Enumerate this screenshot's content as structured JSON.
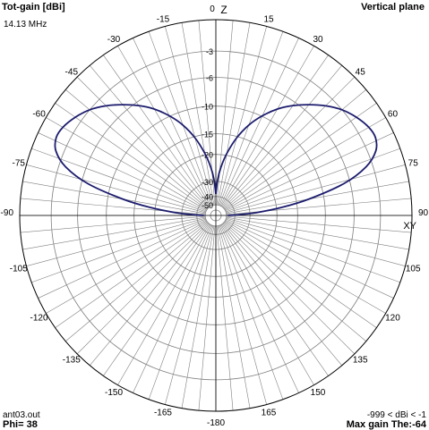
{
  "header": {
    "quantity": "Tot-gain [dBi]",
    "frequency": "14.13 MHz",
    "plane": "Vertical plane"
  },
  "axis_labels": {
    "z": "Z",
    "xy": "XY"
  },
  "footer": {
    "file": "ant03.out",
    "phi": "Phi= 38",
    "range": "-999 < dBi < -1",
    "max_gain": "Max gain The:-64"
  },
  "colors": {
    "pattern": "#1c1c6e",
    "grid": "#808080",
    "frame": "#000000",
    "background": "#ffffff"
  },
  "chart_data": {
    "type": "polar",
    "title": "Tot-gain [dBi]",
    "plane": "Vertical plane",
    "frequency": "14.13 MHz",
    "angle_unit": "deg",
    "angle_ticks": [
      0,
      15,
      30,
      45,
      60,
      75,
      90,
      105,
      120,
      135,
      150,
      165,
      -180,
      -165,
      -150,
      -135,
      -120,
      -105,
      -90,
      -75,
      -60,
      -45,
      -30,
      -15
    ],
    "radial_ticks_dBi": [
      -3,
      -6,
      -10,
      -15,
      -20,
      -30,
      -40,
      -50
    ],
    "radial_range_dBi": [
      -50,
      -1
    ],
    "max_gain_angle_deg": -64,
    "series": [
      {
        "angles_deg": [
          0,
          3,
          6,
          10,
          15,
          20,
          25,
          30,
          35,
          40,
          45,
          50,
          55,
          60,
          64,
          68,
          72,
          76,
          80,
          83,
          86,
          88,
          90
        ],
        "gain_dBi": [
          -38,
          -29,
          -24,
          -19.5,
          -15.3,
          -12.2,
          -9.9,
          -8,
          -6.5,
          -5.2,
          -4,
          -3,
          -2.3,
          -1.8,
          -1.7,
          -2.2,
          -3.7,
          -6.8,
          -12.5,
          -18.5,
          -27,
          -37,
          -48
        ]
      },
      {
        "angles_deg": [
          0,
          -3,
          -6,
          -10,
          -15,
          -20,
          -25,
          -30,
          -35,
          -40,
          -45,
          -50,
          -55,
          -60,
          -64,
          -68,
          -72,
          -76,
          -80,
          -83,
          -86,
          -88,
          -90
        ],
        "gain_dBi": [
          -38,
          -29,
          -24,
          -19.5,
          -15.3,
          -12.2,
          -9.9,
          -8,
          -6.5,
          -5.2,
          -4,
          -3,
          -2.3,
          -1.8,
          -1.7,
          -2.2,
          -3.7,
          -6.8,
          -12.5,
          -18.5,
          -27,
          -37,
          -48
        ]
      }
    ]
  }
}
